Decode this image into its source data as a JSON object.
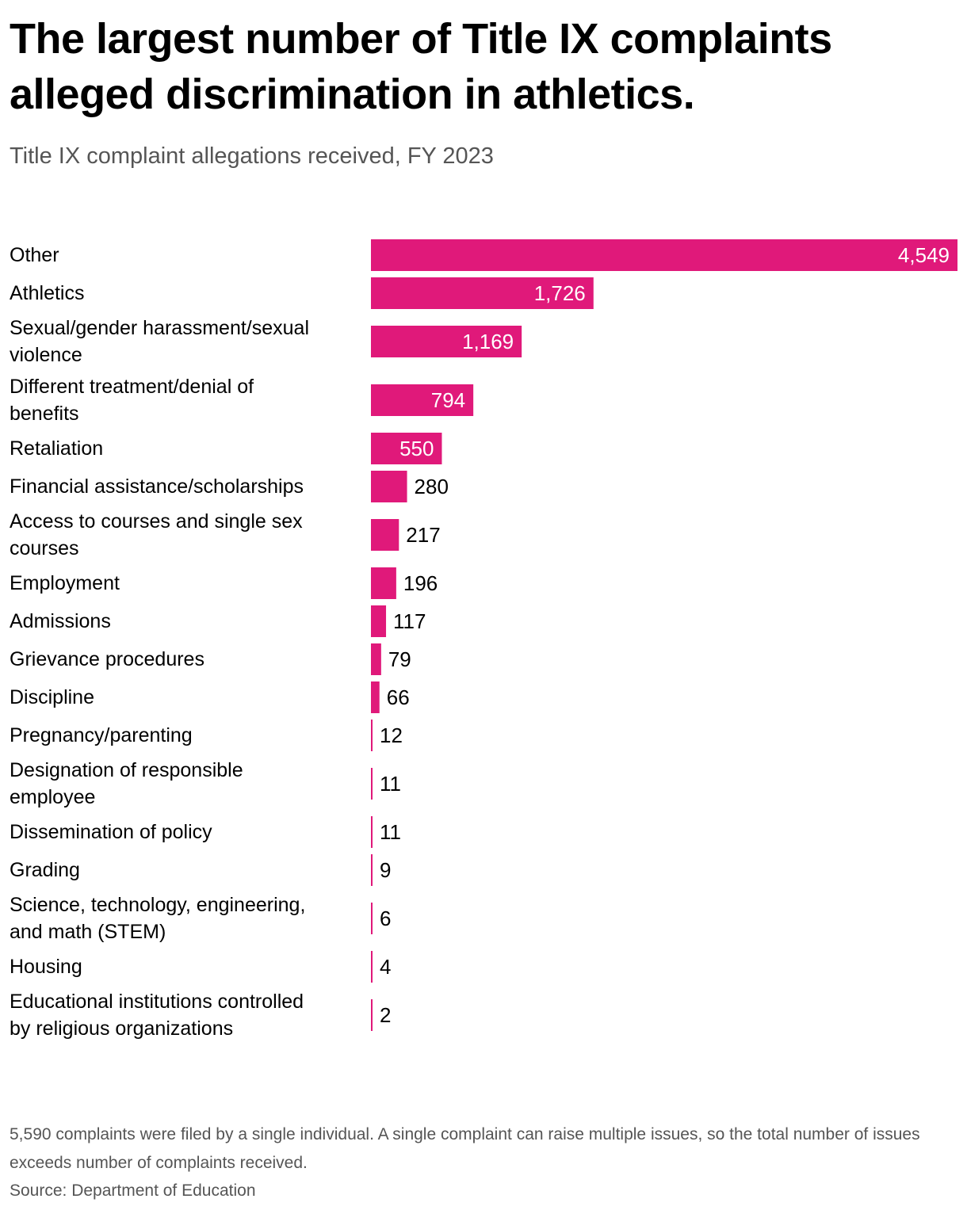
{
  "title": "The largest number of Title IX complaints alleged discrimination in athletics.",
  "subtitle": "Title IX complaint allegations received, FY 2023",
  "footnote": "5,590 complaints were filed by a single individual. A single complaint can raise multiple issues, so the total number of issues exceeds number of complaints received.",
  "source": "Source: Department of Education",
  "colors": {
    "bar": "#e0197a",
    "inside_label": "#ffffff",
    "outside_label": "#000000"
  },
  "chart_data": {
    "type": "bar",
    "orientation": "horizontal",
    "title": "The largest number of Title IX complaints alleged discrimination in athletics.",
    "subtitle": "Title IX complaint allegations received, FY 2023",
    "xlabel": "",
    "ylabel": "",
    "grid": false,
    "legend": "none",
    "xlim": [
      0,
      4549
    ],
    "categories": [
      [
        "Other"
      ],
      [
        "Athletics"
      ],
      [
        "Sexual/gender harassment/sexual",
        "violence"
      ],
      [
        "Different treatment/denial of",
        "benefits"
      ],
      [
        "Retaliation"
      ],
      [
        "Financial assistance/scholarships"
      ],
      [
        "Access to courses and single sex",
        "courses"
      ],
      [
        "Employment"
      ],
      [
        "Admissions"
      ],
      [
        "Grievance procedures"
      ],
      [
        "Discipline"
      ],
      [
        "Pregnancy/parenting"
      ],
      [
        "Designation of responsible",
        "employee"
      ],
      [
        "Dissemination of policy"
      ],
      [
        "Grading"
      ],
      [
        "Science, technology, engineering,",
        "and math (STEM)"
      ],
      [
        "Housing"
      ],
      [
        "Educational institutions controlled",
        "by religious organizations"
      ]
    ],
    "values": [
      4549,
      1726,
      1169,
      794,
      550,
      280,
      217,
      196,
      117,
      79,
      66,
      12,
      11,
      11,
      9,
      6,
      4,
      2
    ],
    "value_labels": [
      "4,549",
      "1,726",
      "1,169",
      "794",
      "550",
      "280",
      "217",
      "196",
      "117",
      "79",
      "66",
      "12",
      "11",
      "11",
      "9",
      "6",
      "4",
      "2"
    ]
  }
}
